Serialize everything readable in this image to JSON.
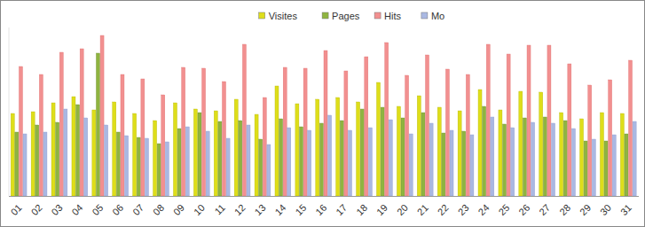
{
  "chart_data": {
    "type": "bar",
    "categories": [
      "01",
      "02",
      "03",
      "04",
      "05",
      "06",
      "07",
      "08",
      "09",
      "10",
      "11",
      "12",
      "13",
      "14",
      "15",
      "16",
      "17",
      "18",
      "19",
      "20",
      "21",
      "22",
      "23",
      "24",
      "25",
      "26",
      "27",
      "28",
      "29",
      "30",
      "31"
    ],
    "series": [
      {
        "name": "Visites",
        "color": "#dede1a",
        "values": [
          93,
          95,
          105,
          112,
          97,
          106,
          93,
          85,
          105,
          98,
          96,
          109,
          92,
          124,
          104,
          109,
          111,
          106,
          128,
          101,
          113,
          100,
          96,
          120,
          97,
          118,
          117,
          94,
          87,
          94,
          93
        ]
      },
      {
        "name": "Pages",
        "color": "#8fb440",
        "values": [
          72,
          80,
          83,
          103,
          161,
          72,
          66,
          59,
          76,
          94,
          84,
          85,
          64,
          87,
          78,
          82,
          85,
          98,
          100,
          88,
          94,
          71,
          73,
          101,
          81,
          88,
          89,
          85,
          62,
          62,
          70
        ]
      },
      {
        "name": "Hits",
        "color": "#f29090",
        "values": [
          146,
          137,
          162,
          166,
          181,
          137,
          132,
          114,
          145,
          144,
          129,
          171,
          111,
          145,
          144,
          164,
          141,
          157,
          173,
          136,
          159,
          143,
          137,
          171,
          160,
          170,
          170,
          149,
          125,
          131,
          153
        ]
      },
      {
        "name": "Mo",
        "color": "#aab8e2",
        "values": [
          70,
          72,
          98,
          88,
          80,
          68,
          65,
          61,
          78,
          73,
          65,
          80,
          58,
          77,
          74,
          91,
          74,
          77,
          86,
          70,
          82,
          74,
          69,
          89,
          77,
          83,
          82,
          76,
          64,
          69,
          84
        ]
      }
    ],
    "ylim": [
      0,
      190
    ],
    "legend": "top",
    "tick_labels": "x"
  }
}
